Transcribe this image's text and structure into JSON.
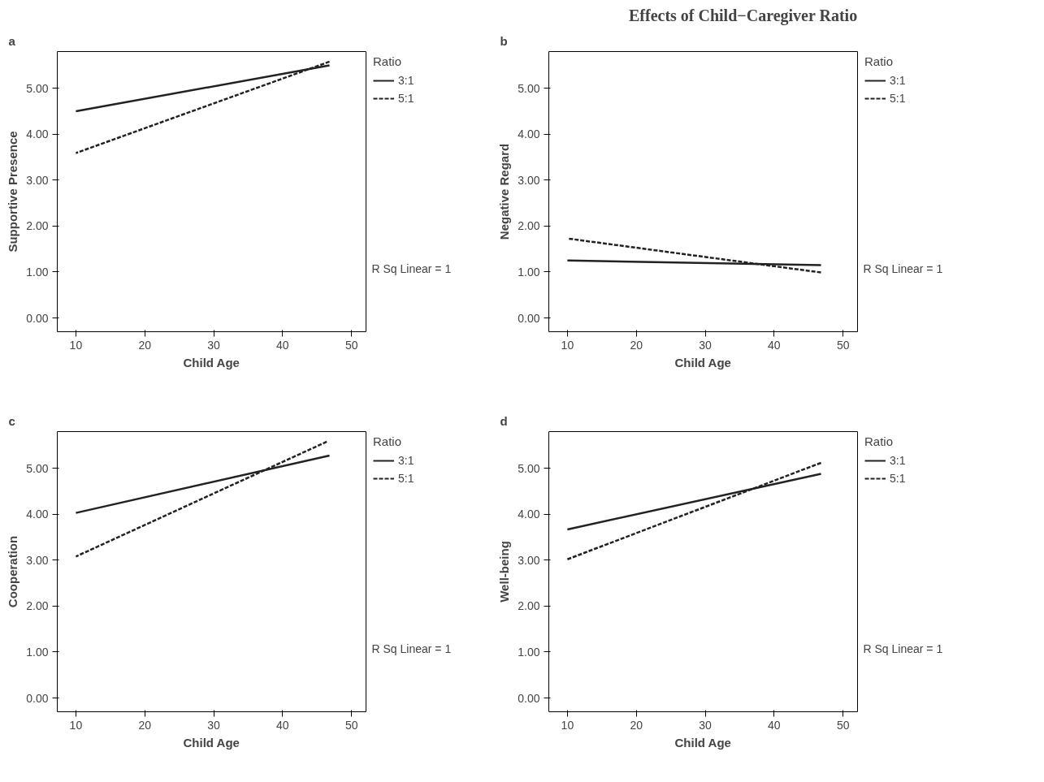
{
  "chart_data": [
    {
      "type": "line",
      "subtitle": "a",
      "xlabel": "Child Age",
      "ylabel": "Supportive Presence",
      "legend_title": "Ratio",
      "annotations": [
        "R Sq Linear = 1"
      ],
      "legend": "right",
      "grid": false,
      "line_style": "solid",
      "marker": "none",
      "xlim": [
        7.3,
        52.1
      ],
      "ylim": [
        -0.3,
        5.8
      ],
      "xticks": [
        10,
        20,
        30,
        40,
        50
      ],
      "yticks": [
        {
          "value": 0,
          "label": "0.00"
        },
        {
          "value": 1,
          "label": "1.00"
        },
        {
          "value": 2,
          "label": "2.00"
        },
        {
          "value": 3,
          "label": "3.00"
        },
        {
          "value": 4,
          "label": "4.00"
        },
        {
          "value": 5,
          "label": "5.00"
        }
      ],
      "series": [
        {
          "name": "3:1",
          "color": "#222222",
          "x": [
            10,
            46.8
          ],
          "values": [
            4.5,
            5.5
          ]
        },
        {
          "name": "5:1",
          "color": "#222222",
          "line_style": "dashed",
          "x": [
            10,
            46.8
          ],
          "values": [
            3.59,
            5.58
          ]
        }
      ]
    },
    {
      "type": "line",
      "title": "Effects of Child−Caregiver Ratio",
      "subtitle": "b",
      "xlabel": "Child Age",
      "ylabel": "Negative Regard",
      "legend_title": "Ratio",
      "annotations": [
        "R Sq Linear = 1"
      ],
      "legend": "right",
      "grid": false,
      "line_style": "solid",
      "marker": "none",
      "xlim": [
        7.3,
        52.1
      ],
      "ylim": [
        -0.3,
        5.8
      ],
      "xticks": [
        10,
        20,
        30,
        40,
        50
      ],
      "yticks": [
        {
          "value": 0,
          "label": "0.00"
        },
        {
          "value": 1,
          "label": "1.00"
        },
        {
          "value": 2,
          "label": "2.00"
        },
        {
          "value": 3,
          "label": "3.00"
        },
        {
          "value": 4,
          "label": "4.00"
        },
        {
          "value": 5,
          "label": "5.00"
        }
      ],
      "series": [
        {
          "name": "3:1",
          "color": "#222222",
          "x": [
            10,
            46.8
          ],
          "values": [
            1.25,
            1.15
          ]
        },
        {
          "name": "5:1",
          "color": "#222222",
          "line_style": "dashed",
          "x": [
            10,
            46.8
          ],
          "values": [
            1.73,
            0.99
          ]
        }
      ]
    },
    {
      "type": "line",
      "subtitle": "c",
      "xlabel": "Child Age",
      "ylabel": "Cooperation",
      "legend_title": "Ratio",
      "annotations": [
        "R Sq Linear = 1"
      ],
      "legend": "right",
      "grid": false,
      "line_style": "solid",
      "marker": "none",
      "xlim": [
        7.3,
        52.1
      ],
      "ylim": [
        -0.3,
        5.8
      ],
      "xticks": [
        10,
        20,
        30,
        40,
        50
      ],
      "yticks": [
        {
          "value": 0,
          "label": "0.00"
        },
        {
          "value": 1,
          "label": "1.00"
        },
        {
          "value": 2,
          "label": "2.00"
        },
        {
          "value": 3,
          "label": "3.00"
        },
        {
          "value": 4,
          "label": "4.00"
        },
        {
          "value": 5,
          "label": "5.00"
        }
      ],
      "series": [
        {
          "name": "3:1",
          "color": "#222222",
          "x": [
            10,
            46.8
          ],
          "values": [
            4.03,
            5.28
          ]
        },
        {
          "name": "5:1",
          "color": "#222222",
          "line_style": "dashed",
          "x": [
            10,
            46.4
          ],
          "values": [
            3.08,
            5.58
          ]
        }
      ]
    },
    {
      "type": "line",
      "subtitle": "d",
      "xlabel": "Child Age",
      "ylabel": "Well-being",
      "legend_title": "Ratio",
      "annotations": [
        "R Sq Linear = 1"
      ],
      "legend": "right",
      "grid": false,
      "line_style": "solid",
      "marker": "none",
      "xlim": [
        7.3,
        52.1
      ],
      "ylim": [
        -0.3,
        5.8
      ],
      "xticks": [
        10,
        20,
        30,
        40,
        50
      ],
      "yticks": [
        {
          "value": 0,
          "label": "0.00"
        },
        {
          "value": 1,
          "label": "1.00"
        },
        {
          "value": 2,
          "label": "2.00"
        },
        {
          "value": 3,
          "label": "3.00"
        },
        {
          "value": 4,
          "label": "4.00"
        },
        {
          "value": 5,
          "label": "5.00"
        }
      ],
      "series": [
        {
          "name": "3:1",
          "color": "#222222",
          "x": [
            10,
            46.8
          ],
          "values": [
            3.67,
            4.88
          ]
        },
        {
          "name": "5:1",
          "color": "#222222",
          "line_style": "dashed",
          "x": [
            10,
            46.8
          ],
          "values": [
            3.02,
            5.12
          ]
        }
      ]
    }
  ]
}
